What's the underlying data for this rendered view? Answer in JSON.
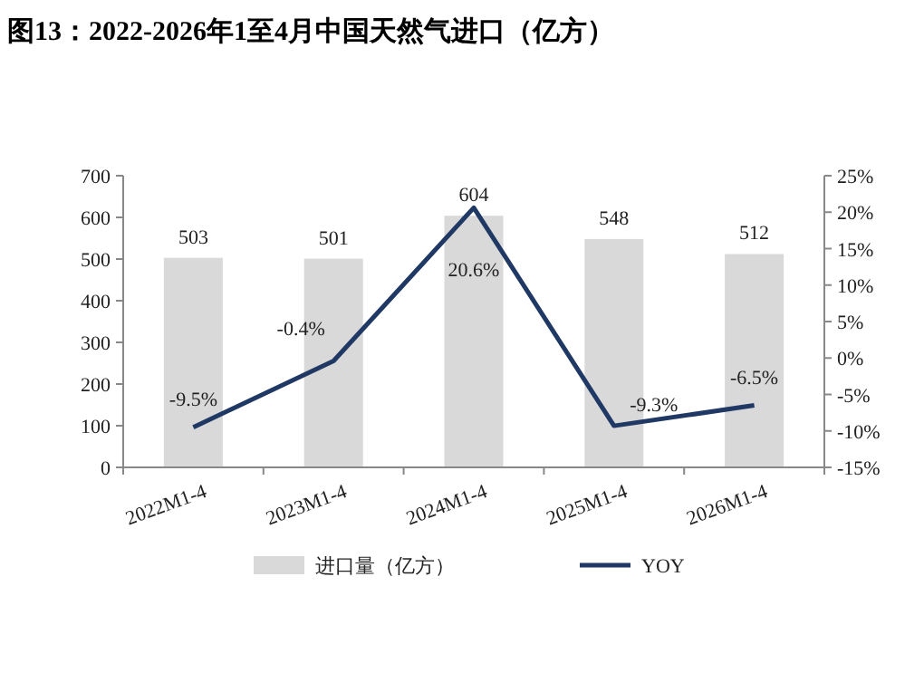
{
  "chart_data": {
    "type": "bar",
    "title": "图13：2022-2026年1至4月中国天然气进口（亿方）",
    "categories": [
      "2022M1-4",
      "2023M1-4",
      "2024M1-4",
      "2025M1-4",
      "2026M1-4"
    ],
    "ylim": [
      0,
      700
    ],
    "yticks": [
      0,
      100,
      200,
      300,
      400,
      500,
      600,
      700
    ],
    "y2lim": [
      -15,
      25
    ],
    "y2ticks": [
      {
        "value": -15,
        "label": "-15%"
      },
      {
        "value": -10,
        "label": "-10%"
      },
      {
        "value": -5,
        "label": "-5%"
      },
      {
        "value": 0,
        "label": "0%"
      },
      {
        "value": 5,
        "label": "5%"
      },
      {
        "value": 10,
        "label": "10%"
      },
      {
        "value": 15,
        "label": "15%"
      },
      {
        "value": 20,
        "label": "20%"
      },
      {
        "value": 25,
        "label": "25%"
      }
    ],
    "legend": "bottom",
    "series": [
      {
        "name": "进口量（亿方）",
        "color": "#d9d9d9",
        "values": [
          503,
          501,
          604,
          548,
          512
        ],
        "value_labels": [
          "503",
          "501",
          "604",
          "548",
          "512"
        ]
      },
      {
        "name": "YOY",
        "type": "line",
        "axis": "y2",
        "color": "#1f3864",
        "values": [
          -9.5,
          -0.4,
          20.6,
          -9.3,
          -6.5
        ],
        "value_labels": [
          "-9.5%",
          "-0.4%",
          "20.6%",
          "-9.3%",
          "-6.5%"
        ]
      }
    ]
  }
}
